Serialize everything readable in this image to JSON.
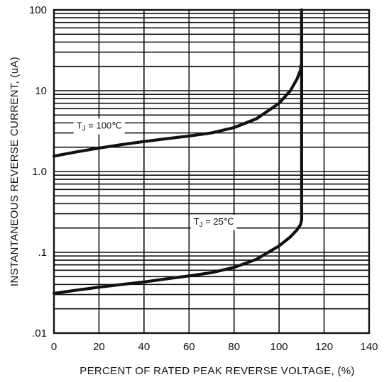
{
  "chart_data": {
    "type": "line",
    "xlabel": "PERCENT OF RATED PEAK REVERSE VOLTAGE, (%)",
    "ylabel": "INSTANTANEOUS REVERSE CURRENT, (uA)",
    "xlim": [
      0,
      140
    ],
    "ylim": [
      0.01,
      100
    ],
    "y_scale": "log",
    "grid": true,
    "x_ticks": [
      0,
      20,
      40,
      60,
      80,
      100,
      120,
      140
    ],
    "x_tick_labels": [
      "0",
      "20",
      "40",
      "60",
      "80",
      "100",
      "120",
      "140"
    ],
    "y_ticks": [
      0.01,
      0.1,
      1,
      10,
      100
    ],
    "y_tick_labels": [
      ".01",
      ".1",
      "1.0",
      "10",
      "100"
    ],
    "series": [
      {
        "name": "TJ = 100℃",
        "label_main": "T",
        "label_sub": "J",
        "label_rest": " = 100℃",
        "x": [
          0,
          10,
          20,
          30,
          40,
          50,
          60,
          70,
          80,
          90,
          100,
          105,
          108,
          109.5,
          110,
          110,
          110
        ],
        "y": [
          1.55,
          1.75,
          1.95,
          2.15,
          2.35,
          2.55,
          2.75,
          3.0,
          3.5,
          4.5,
          7.0,
          10.0,
          14.0,
          18.0,
          22.0,
          60.0,
          100.0
        ]
      },
      {
        "name": "TJ = 25℃",
        "label_main": "T",
        "label_sub": "J",
        "label_rest": " = 25℃",
        "x": [
          0,
          10,
          20,
          30,
          40,
          50,
          60,
          70,
          80,
          90,
          100,
          105,
          108,
          109.5,
          110,
          110,
          110
        ],
        "y": [
          0.031,
          0.034,
          0.037,
          0.04,
          0.043,
          0.047,
          0.051,
          0.056,
          0.065,
          0.082,
          0.12,
          0.155,
          0.19,
          0.22,
          0.25,
          2.0,
          100.0
        ]
      }
    ],
    "annotations": [
      {
        "series": 0,
        "at_x": 10,
        "at_y": 3.4
      },
      {
        "series": 1,
        "at_x": 62,
        "at_y": 0.22
      }
    ]
  }
}
